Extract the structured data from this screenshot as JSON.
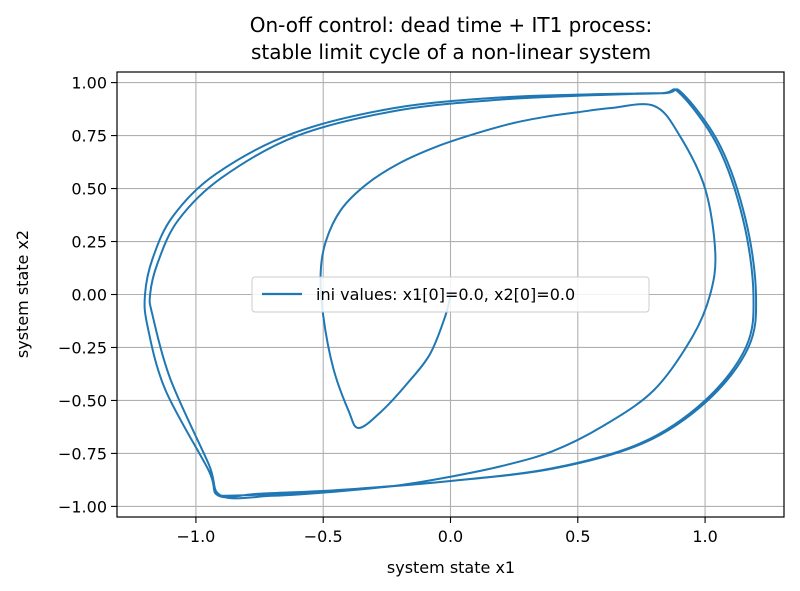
{
  "chart_data": {
    "type": "line",
    "title_line1": "On-off control: dead time + IT1 process:",
    "title_line2": "stable limit cycle of a non-linear system",
    "xlabel": "system state x1",
    "ylabel": "system state x2",
    "xlim": [
      -1.31,
      1.31
    ],
    "ylim": [
      -1.05,
      1.05
    ],
    "xticks": [
      -1.0,
      -0.5,
      0.0,
      0.5,
      1.0
    ],
    "xtick_labels": [
      "−1.0",
      "−0.5",
      "0.0",
      "0.5",
      "1.0"
    ],
    "yticks": [
      1.0,
      0.75,
      0.5,
      0.25,
      0.0,
      -0.25,
      -0.5,
      -0.75,
      -1.0
    ],
    "ytick_labels": [
      "1.00",
      "0.75",
      "0.50",
      "0.25",
      "0.00",
      "−0.25",
      "−0.50",
      "−0.75",
      "−1.00"
    ],
    "grid": true,
    "legend_position": "center",
    "series": [
      {
        "name": "ini values: x1[0]=0.0, x2[0]=0.0",
        "color": "#1f77b4",
        "x": [
          0.0,
          -0.02,
          -0.08,
          -0.17,
          -0.27,
          -0.36,
          -0.4,
          -0.46,
          -0.5,
          -0.51,
          -0.49,
          -0.43,
          -0.33,
          -0.2,
          -0.05,
          0.1,
          0.25,
          0.38,
          0.5,
          0.63,
          0.8,
          0.9,
          1.0,
          1.04,
          1.02,
          0.95,
          0.8,
          0.6,
          0.4,
          0.2,
          0.0,
          -0.2,
          -0.45,
          -0.7,
          -0.9,
          -0.95,
          -1.1,
          -1.17,
          -1.18,
          -1.15,
          -1.07,
          -0.9,
          -0.6,
          -0.2,
          0.2,
          0.55,
          0.83,
          0.9,
          1.05,
          1.15,
          1.19,
          1.16,
          1.0,
          0.75,
          0.4,
          0.0,
          -0.4,
          -0.75,
          -0.91,
          -0.95,
          -1.12,
          -1.19,
          -1.2,
          -1.17,
          -1.09,
          -0.92,
          -0.62,
          -0.22,
          0.2,
          0.56,
          0.84,
          0.91,
          1.06,
          1.16,
          1.2,
          1.17,
          1.01,
          0.76,
          0.41,
          0.0,
          -0.41,
          -0.76,
          -0.9
        ],
        "y": [
          0.0,
          -0.1,
          -0.28,
          -0.42,
          -0.55,
          -0.63,
          -0.55,
          -0.35,
          -0.1,
          0.1,
          0.25,
          0.4,
          0.52,
          0.62,
          0.7,
          0.76,
          0.81,
          0.84,
          0.86,
          0.88,
          0.89,
          0.75,
          0.5,
          0.2,
          0.0,
          -0.2,
          -0.45,
          -0.62,
          -0.74,
          -0.81,
          -0.86,
          -0.9,
          -0.93,
          -0.95,
          -0.95,
          -0.8,
          -0.4,
          -0.1,
          0.0,
          0.15,
          0.35,
          0.55,
          0.75,
          0.87,
          0.92,
          0.94,
          0.95,
          0.95,
          0.7,
          0.35,
          0.0,
          -0.25,
          -0.5,
          -0.7,
          -0.82,
          -0.88,
          -0.92,
          -0.94,
          -0.95,
          -0.83,
          -0.45,
          -0.15,
          0.0,
          0.17,
          0.37,
          0.57,
          0.76,
          0.88,
          0.93,
          0.945,
          0.95,
          0.95,
          0.7,
          0.35,
          0.0,
          -0.25,
          -0.5,
          -0.7,
          -0.82,
          -0.88,
          -0.92,
          -0.945,
          -0.95
        ]
      }
    ]
  }
}
